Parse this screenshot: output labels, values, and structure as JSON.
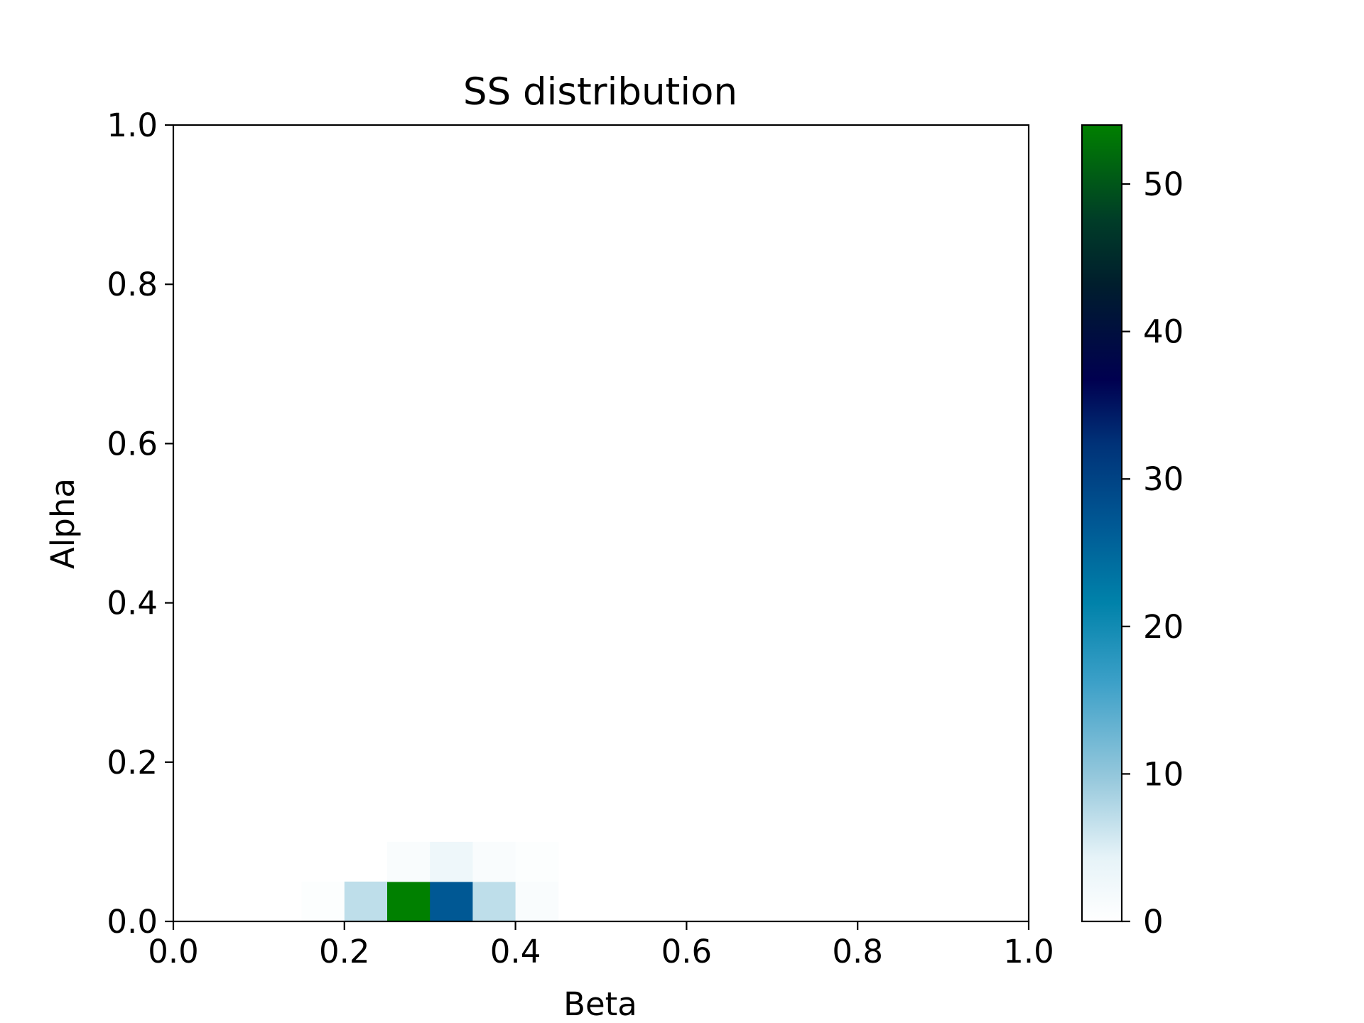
{
  "chart_data": {
    "type": "heatmap",
    "title": "SS distribution",
    "xlabel": "Beta",
    "ylabel": "Alpha",
    "xlim": [
      0.0,
      1.0
    ],
    "ylim": [
      0.0,
      1.0
    ],
    "xticks": [
      "0.0",
      "0.2",
      "0.4",
      "0.6",
      "0.8",
      "1.0"
    ],
    "yticks": [
      "0.0",
      "0.2",
      "0.4",
      "0.6",
      "0.8",
      "1.0"
    ],
    "bin_width": 0.05,
    "bin_height": 0.05,
    "cells": [
      {
        "x": [
          0.15,
          0.2
        ],
        "y": [
          0.0,
          0.05
        ],
        "value": 0.5
      },
      {
        "x": [
          0.2,
          0.25
        ],
        "y": [
          0.0,
          0.05
        ],
        "value": 7
      },
      {
        "x": [
          0.25,
          0.3
        ],
        "y": [
          0.0,
          0.05
        ],
        "value": 54
      },
      {
        "x": [
          0.3,
          0.35
        ],
        "y": [
          0.0,
          0.05
        ],
        "value": 27
      },
      {
        "x": [
          0.35,
          0.4
        ],
        "y": [
          0.0,
          0.05
        ],
        "value": 7
      },
      {
        "x": [
          0.4,
          0.45
        ],
        "y": [
          0.0,
          0.05
        ],
        "value": 1
      },
      {
        "x": [
          0.25,
          0.3
        ],
        "y": [
          0.05,
          0.1
        ],
        "value": 1
      },
      {
        "x": [
          0.3,
          0.35
        ],
        "y": [
          0.05,
          0.1
        ],
        "value": 3
      },
      {
        "x": [
          0.35,
          0.4
        ],
        "y": [
          0.05,
          0.1
        ],
        "value": 1
      },
      {
        "x": [
          0.4,
          0.45
        ],
        "y": [
          0.05,
          0.1
        ],
        "value": 0.5
      }
    ],
    "colorbar": {
      "colormap": "ocean_r",
      "range": [
        0,
        54
      ],
      "ticks": [
        "0",
        "10",
        "20",
        "30",
        "40",
        "50"
      ],
      "tick_values": [
        0,
        10,
        20,
        30,
        40,
        50
      ]
    },
    "grid": false,
    "legend": "none"
  }
}
